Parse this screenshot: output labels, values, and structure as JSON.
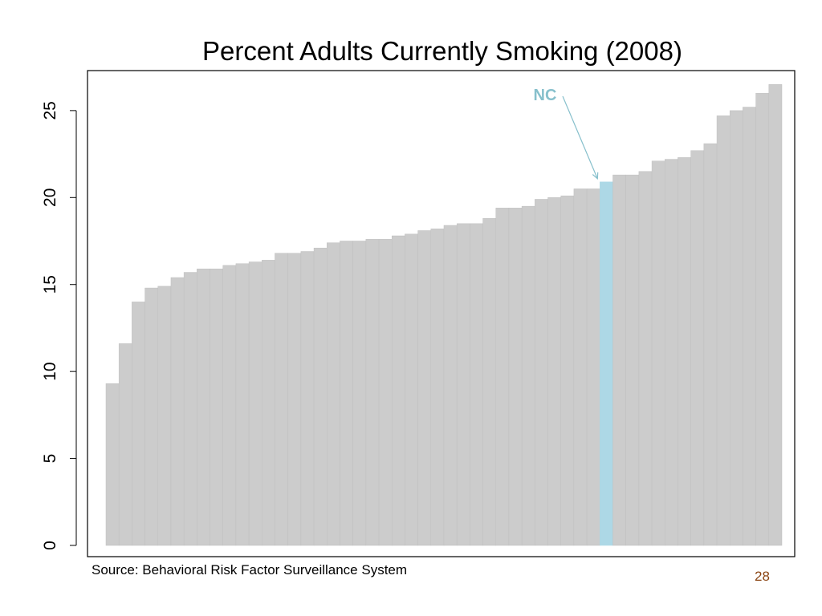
{
  "chart_data": {
    "type": "bar",
    "title": "Percent Adults Currently Smoking (2008)",
    "xlabel": "",
    "ylabel": "",
    "ylim": [
      0,
      27.3
    ],
    "yticks": [
      0,
      5,
      10,
      15,
      20,
      25
    ],
    "values": [
      9.3,
      11.6,
      14.0,
      14.8,
      14.9,
      15.4,
      15.7,
      15.9,
      15.9,
      16.1,
      16.2,
      16.3,
      16.4,
      16.8,
      16.8,
      16.9,
      17.1,
      17.4,
      17.5,
      17.5,
      17.6,
      17.6,
      17.8,
      17.9,
      18.1,
      18.2,
      18.4,
      18.5,
      18.5,
      18.8,
      19.4,
      19.4,
      19.5,
      19.9,
      20.0,
      20.1,
      20.5,
      20.5,
      20.9,
      21.3,
      21.3,
      21.5,
      22.1,
      22.2,
      22.3,
      22.7,
      23.1,
      24.7,
      25.0,
      25.2,
      26.0,
      26.5
    ],
    "highlight_index": 38,
    "highlight_label": "NC",
    "bar_color": "#cccccc",
    "highlight_color": "#add8e6",
    "annotation_color": "#87c0cc",
    "grid": false,
    "legend": "none"
  },
  "footer": {
    "source": "Source: Behavioral Risk Factor Surveillance System",
    "page_number": "28"
  }
}
